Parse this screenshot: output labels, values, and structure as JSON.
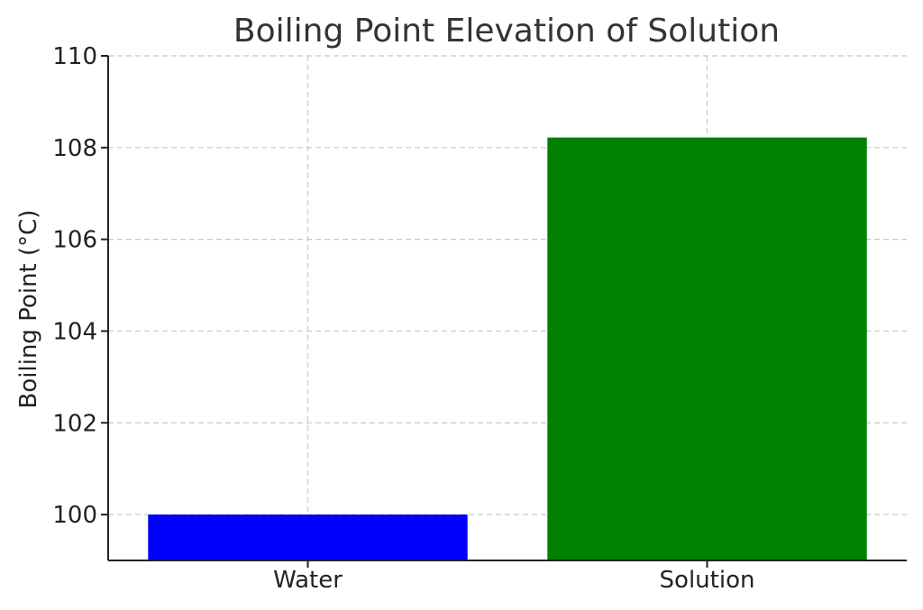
{
  "chart_data": {
    "type": "bar",
    "title": "Boiling Point Elevation of Solution",
    "xlabel": "",
    "ylabel": "Boiling Point (°C)",
    "categories": [
      "Water",
      "Solution"
    ],
    "values": [
      100,
      108.22
    ],
    "colors": [
      "#0000ff",
      "#008000"
    ],
    "ylim": [
      99,
      110
    ],
    "yticks": [
      100,
      102,
      104,
      106,
      108,
      110
    ],
    "grid": true,
    "legend": "none"
  }
}
